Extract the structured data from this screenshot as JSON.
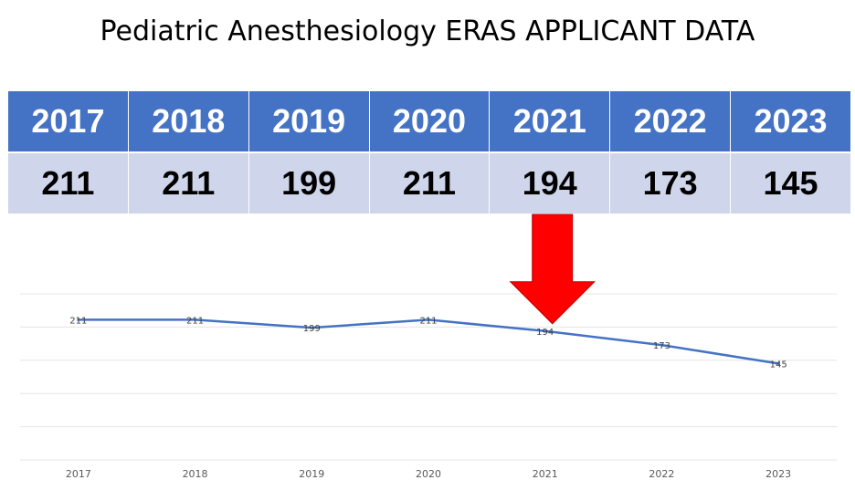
{
  "title": "Pediatric Anesthesiology ERAS APPLICANT DATA",
  "colors": {
    "header_bg": "#4472c4",
    "value_bg": "#cfd5ea",
    "line": "#4472c4",
    "arrow": "#ff0000",
    "grid": "#e4e4e4"
  },
  "table": {
    "years": [
      "2017",
      "2018",
      "2019",
      "2020",
      "2021",
      "2022",
      "2023"
    ],
    "values": [
      "211",
      "211",
      "199",
      "211",
      "194",
      "173",
      "145"
    ]
  },
  "annotation": {
    "type": "down-arrow",
    "points_to": "2021"
  },
  "chart_data": {
    "type": "line",
    "categories": [
      "2017",
      "2018",
      "2019",
      "2020",
      "2021",
      "2022",
      "2023"
    ],
    "series": [
      {
        "values": [
          211,
          211,
          199,
          211,
          194,
          173,
          145
        ]
      }
    ],
    "data_labels": [
      "211",
      "211",
      "199",
      "211",
      "194",
      "173",
      "145"
    ],
    "ylim": [
      0,
      250
    ],
    "grid": true,
    "y_tick_labels_shown": false,
    "legend": "none"
  }
}
